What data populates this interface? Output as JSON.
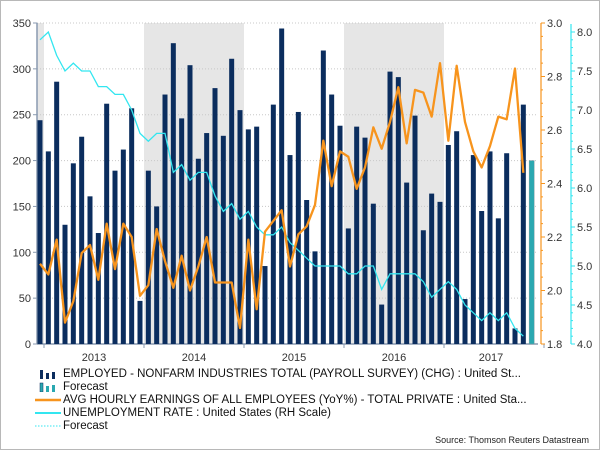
{
  "chart_data": {
    "type": "bar+line",
    "title": "",
    "x_start": "2012-12",
    "year_labels": [
      "2013",
      "2014",
      "2015",
      "2016",
      "2017"
    ],
    "shaded_years": [
      "2012",
      "2014",
      "2016"
    ],
    "left_axis": {
      "min": 0,
      "max": 350,
      "ticks": [
        "0",
        "50",
        "100",
        "150",
        "200",
        "250",
        "300",
        "350"
      ]
    },
    "right_axis_earnings": {
      "min": 1.8,
      "max": 3.0,
      "ticks": [
        "1.8",
        "2.0",
        "2.2",
        "2.4",
        "2.6",
        "2.8",
        "3.0"
      ],
      "color": "#f7941d"
    },
    "right_axis_unemployment": {
      "min": 4.0,
      "max": 8.0,
      "ticks": [
        "4.0",
        "4.5",
        "5.0",
        "5.5",
        "6.0",
        "6.5",
        "7.0",
        "7.5",
        "8.0"
      ],
      "color": "#33e6f0"
    },
    "series": [
      {
        "name": "EMPLOYED - NONFARM INDUSTRIES TOTAL (PAYROLL SURVEY) (CHG) : United St...",
        "type": "bar",
        "axis": "left",
        "color": "#0b2d5e",
        "values": [
          244,
          210,
          286,
          130,
          197,
          226,
          161,
          121,
          262,
          189,
          212,
          257,
          47,
          189,
          150,
          272,
          328,
          246,
          304,
          202,
          230,
          279,
          227,
          311,
          255,
          234,
          237,
          85,
          261,
          344,
          206,
          253,
          157,
          101,
          320,
          272,
          238,
          126,
          237,
          225,
          153,
          43,
          297,
          291,
          176,
          249,
          124,
          164,
          155,
          217,
          232,
          49,
          206,
          145,
          210,
          137,
          208,
          17,
          261
        ]
      },
      {
        "name": "Forecast",
        "type": "bar",
        "axis": "left",
        "color": "#2aa8b0",
        "values": [
          200
        ]
      },
      {
        "name": "AVG HOURLY EARNINGS OF ALL EMPLOYEES (YoY%) - TOTAL PRIVATE : United Sta...",
        "type": "line",
        "axis": "right_earnings",
        "color": "#f7941d",
        "values": [
          2.1,
          2.06,
          2.19,
          1.88,
          1.96,
          2.14,
          2.17,
          2.04,
          2.25,
          2.08,
          2.25,
          2.2,
          1.98,
          2.02,
          2.23,
          2.11,
          2.01,
          2.13,
          2.0,
          2.09,
          2.2,
          2.03,
          2.03,
          2.03,
          1.86,
          2.19,
          1.93,
          2.22,
          2.26,
          2.3,
          2.09,
          2.21,
          2.24,
          2.32,
          2.56,
          2.39,
          2.52,
          2.5,
          2.38,
          2.46,
          2.61,
          2.53,
          2.63,
          2.76,
          2.55,
          2.75,
          2.74,
          2.65,
          2.85,
          2.56,
          2.84,
          2.63,
          2.52,
          2.46,
          2.54,
          2.65,
          2.64,
          2.83,
          2.44
        ]
      },
      {
        "name": "UNEMPLOYMENT RATE : United States (RH Scale)",
        "type": "line",
        "axis": "right_unemployment",
        "color": "#33e6f0",
        "values": [
          7.9,
          8.0,
          7.7,
          7.5,
          7.6,
          7.5,
          7.5,
          7.3,
          7.3,
          7.2,
          7.2,
          7.0,
          6.7,
          6.6,
          6.7,
          6.7,
          6.2,
          6.3,
          6.1,
          6.2,
          6.2,
          5.9,
          5.7,
          5.8,
          5.6,
          5.7,
          5.5,
          5.4,
          5.4,
          5.5,
          5.3,
          5.2,
          5.1,
          5.0,
          5.0,
          5.0,
          5.0,
          4.9,
          4.9,
          5.0,
          5.0,
          4.7,
          4.9,
          4.9,
          4.9,
          4.9,
          4.8,
          4.6,
          4.7,
          4.8,
          4.7,
          4.5,
          4.4,
          4.3,
          4.4,
          4.3,
          4.4,
          4.2,
          4.1
        ]
      },
      {
        "name": "Forecast",
        "type": "line-dotted",
        "axis": "right_unemployment",
        "color": "#33e6f0",
        "values": []
      }
    ],
    "source": "Source: Thomson Reuters Datastream"
  }
}
